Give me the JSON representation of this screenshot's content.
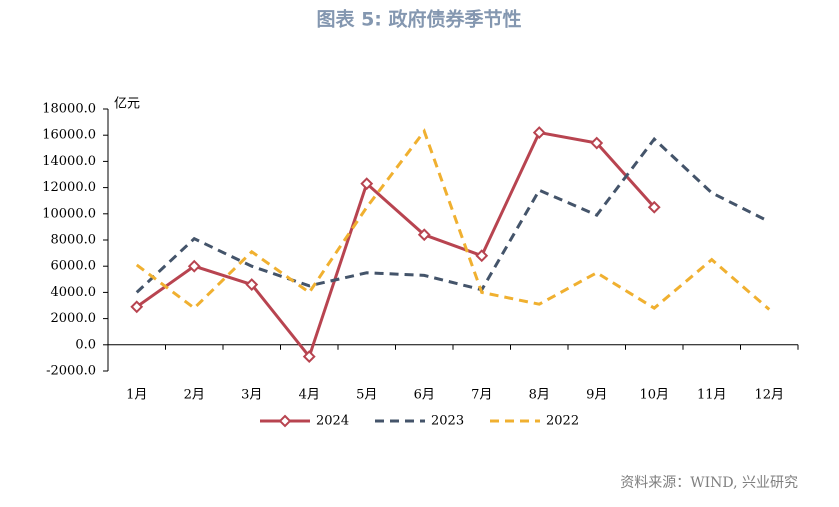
{
  "chart_data": {
    "type": "line",
    "title": "图表 5: 政府债券季节性",
    "y_unit": "亿元",
    "source": "资料来源：WIND, 兴业研究",
    "categories": [
      "1月",
      "2月",
      "3月",
      "4月",
      "5月",
      "6月",
      "7月",
      "8月",
      "9月",
      "10月",
      "11月",
      "12月"
    ],
    "series": [
      {
        "name": "2024",
        "color": "#b84450",
        "dash": "solid",
        "marker": "diamond",
        "values": [
          2900,
          6000,
          4600,
          -900,
          12300,
          8400,
          6800,
          16200,
          15400,
          10500,
          null,
          null
        ]
      },
      {
        "name": "2023",
        "color": "#44546a",
        "dash": "dashed",
        "marker": "none",
        "values": [
          4000,
          8100,
          6000,
          4500,
          5500,
          5300,
          4200,
          11800,
          9900,
          15700,
          11600,
          9400
        ]
      },
      {
        "name": "2022",
        "color": "#f0b030",
        "dash": "dashed",
        "marker": "none",
        "values": [
          6100,
          2800,
          7100,
          4000,
          10500,
          16300,
          4000,
          3100,
          5500,
          2800,
          6500,
          2700
        ]
      }
    ],
    "ylim": [
      -2000,
      18000
    ],
    "yticks": [
      {
        "value": -2000,
        "label": "-2000.0"
      },
      {
        "value": 0,
        "label": "0.0"
      },
      {
        "value": 2000,
        "label": "2000.0"
      },
      {
        "value": 4000,
        "label": "4000.0"
      },
      {
        "value": 6000,
        "label": "6000.0"
      },
      {
        "value": 8000,
        "label": "8000.0"
      },
      {
        "value": 10000,
        "label": "10000.0"
      },
      {
        "value": 12000,
        "label": "12000.0"
      },
      {
        "value": 14000,
        "label": "14000.0"
      },
      {
        "value": 16000,
        "label": "16000.0"
      },
      {
        "value": 18000,
        "label": "18000.0"
      }
    ],
    "grid": false,
    "legend": "bottom"
  }
}
